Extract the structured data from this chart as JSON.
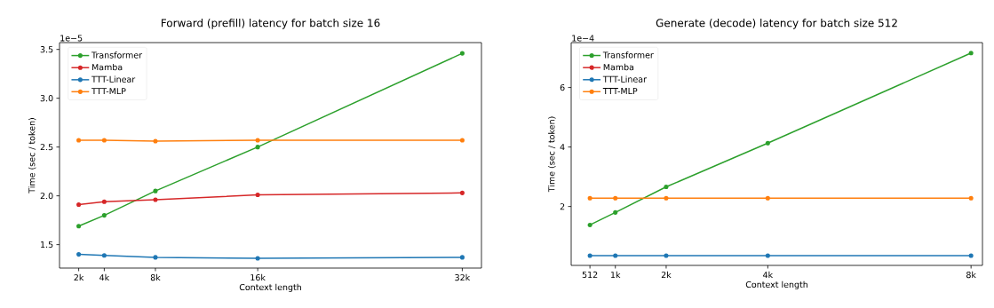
{
  "chart_data": [
    {
      "type": "line",
      "title": "Forward (prefill) latency for batch size 16",
      "xlabel": "Context length",
      "ylabel": "Time (sec / token)",
      "annotations": [
        "1e−5"
      ],
      "x": [
        2,
        4,
        8,
        16,
        32
      ],
      "xlim": [
        0.5,
        33.5
      ],
      "ylim": [
        1.26,
        3.57
      ],
      "xticks": [
        {
          "value": 2,
          "label": "2k"
        },
        {
          "value": 4,
          "label": "4k"
        },
        {
          "value": 8,
          "label": "8k"
        },
        {
          "value": 16,
          "label": "16k"
        },
        {
          "value": 32,
          "label": "32k"
        }
      ],
      "yticks": [
        {
          "value": 1.5,
          "label": "1.5"
        },
        {
          "value": 2.0,
          "label": "2.0"
        },
        {
          "value": 2.5,
          "label": "2.5"
        },
        {
          "value": 3.0,
          "label": "3.0"
        },
        {
          "value": 3.5,
          "label": "3.5"
        }
      ],
      "marker": "circle",
      "line_style": "solid",
      "legend": "top left",
      "series": [
        {
          "name": "Transformer",
          "color": "#2ca02c",
          "values": [
            1.69,
            1.8,
            2.05,
            2.5,
            3.46
          ]
        },
        {
          "name": "Mamba",
          "color": "#d62728",
          "values": [
            1.91,
            1.94,
            1.96,
            2.01,
            2.03
          ]
        },
        {
          "name": "TTT-Linear",
          "color": "#1f77b4",
          "values": [
            1.4,
            1.39,
            1.37,
            1.36,
            1.37
          ]
        },
        {
          "name": "TTT-MLP",
          "color": "#ff7f0e",
          "values": [
            2.57,
            2.57,
            2.56,
            2.57,
            2.57
          ]
        }
      ]
    },
    {
      "type": "line",
      "title": "Generate (decode) latency for batch size 512",
      "xlabel": "Context length",
      "ylabel": "Time (sec / token)",
      "annotations": [
        "1e−4"
      ],
      "x": [
        512,
        1024,
        2048,
        4096,
        8192
      ],
      "xlim": [
        134,
        8422
      ],
      "ylim": [
        0.02,
        7.51
      ],
      "xticks": [
        512,
        {
          "value": 1024,
          "label": "1k"
        },
        {
          "value": 2048,
          "label": "2k"
        },
        {
          "value": 4096,
          "label": "4k"
        },
        {
          "value": 8192,
          "label": "8k"
        }
      ],
      "yticks": [
        2,
        4,
        6
      ],
      "marker": "circle",
      "line_style": "solid",
      "legend": "top left",
      "series": [
        {
          "name": "Transformer",
          "color": "#2ca02c",
          "values": [
            1.38,
            1.8,
            2.66,
            4.13,
            7.16
          ]
        },
        {
          "name": "Mamba",
          "color": "#d62728",
          "values": [
            null,
            null,
            null,
            null,
            null
          ]
        },
        {
          "name": "TTT-Linear",
          "color": "#1f77b4",
          "values": [
            0.35,
            0.35,
            0.35,
            0.35,
            0.35
          ]
        },
        {
          "name": "TTT-MLP",
          "color": "#ff7f0e",
          "values": [
            2.28,
            2.28,
            2.28,
            2.28,
            2.28
          ]
        }
      ]
    }
  ]
}
